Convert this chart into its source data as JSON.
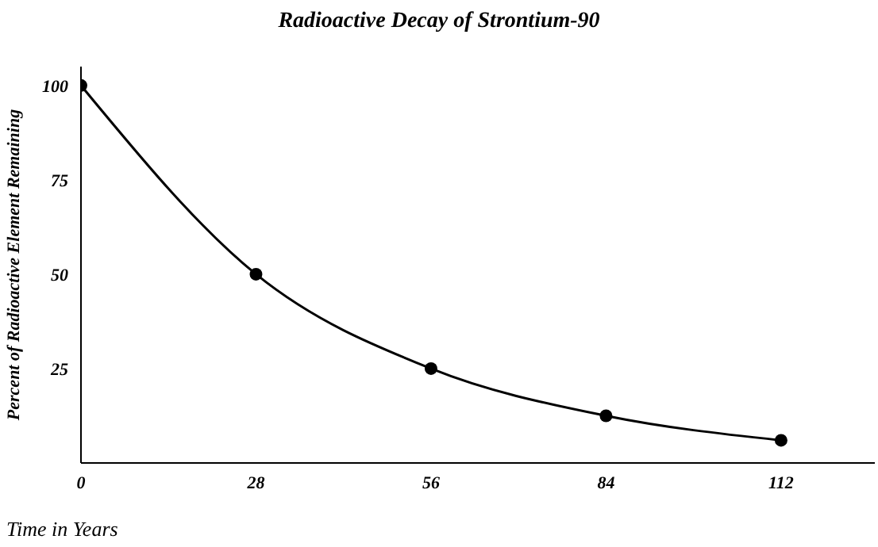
{
  "chart_data": {
    "type": "line",
    "title": "Radioactive Decay of Strontium-90",
    "xlabel": "Time in Years",
    "ylabel": "Percent of Radioactive Element Remaining",
    "x": [
      0,
      28,
      56,
      84,
      112
    ],
    "series": [
      {
        "color": "#000000",
        "values": [
          100,
          50,
          25,
          12.5,
          6
        ]
      }
    ],
    "xlim": [
      0,
      127
    ],
    "xticks": [
      0,
      28,
      56,
      84,
      112
    ],
    "ylim": [
      0,
      105
    ],
    "yticks": [
      25,
      50,
      75,
      100
    ],
    "marker": "circle",
    "line_style": "solid",
    "grid": false,
    "legend": false
  }
}
